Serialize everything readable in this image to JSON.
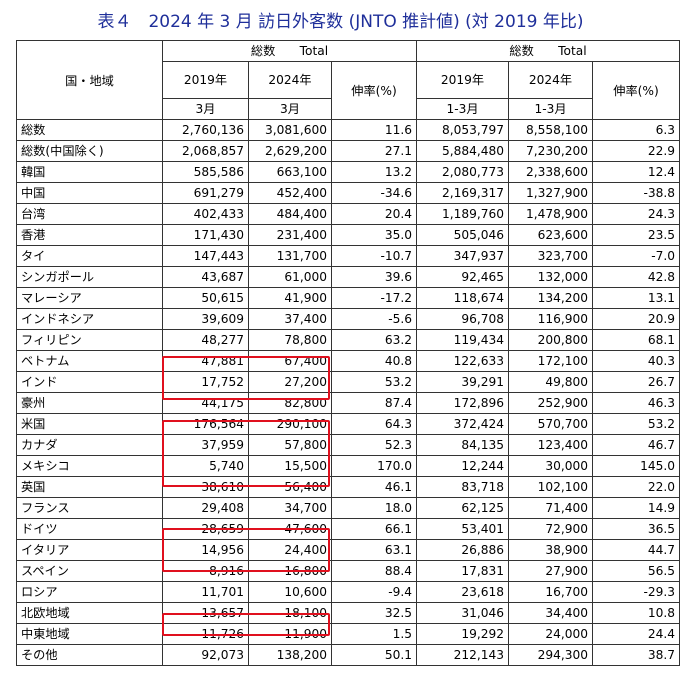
{
  "title": "表４　2024 年 3 月 訪日外客数 (JNTO 推計値) (対 2019 年比)",
  "header": {
    "region_label": "国・地域",
    "group1": "総数　　Total",
    "group2": "総数　　Total",
    "y2019": "2019年",
    "y2024": "2024年",
    "growth": "伸率(%)",
    "month_mar": "3月",
    "month_jan_mar": "1-3月"
  },
  "rows": [
    {
      "name": "総数",
      "m2019": "2,760,136",
      "m2024": "3,081,600",
      "mrate": "11.6",
      "q2019": "8,053,797",
      "q2024": "8,558,100",
      "qrate": "6.3"
    },
    {
      "name": "総数(中国除く)",
      "m2019": "2,068,857",
      "m2024": "2,629,200",
      "mrate": "27.1",
      "q2019": "5,884,480",
      "q2024": "7,230,200",
      "qrate": "22.9"
    },
    {
      "name": "韓国",
      "m2019": "585,586",
      "m2024": "663,100",
      "mrate": "13.2",
      "q2019": "2,080,773",
      "q2024": "2,338,600",
      "qrate": "12.4"
    },
    {
      "name": "中国",
      "m2019": "691,279",
      "m2024": "452,400",
      "mrate": "-34.6",
      "q2019": "2,169,317",
      "q2024": "1,327,900",
      "qrate": "-38.8"
    },
    {
      "name": "台湾",
      "m2019": "402,433",
      "m2024": "484,400",
      "mrate": "20.4",
      "q2019": "1,189,760",
      "q2024": "1,478,900",
      "qrate": "24.3"
    },
    {
      "name": "香港",
      "m2019": "171,430",
      "m2024": "231,400",
      "mrate": "35.0",
      "q2019": "505,046",
      "q2024": "623,600",
      "qrate": "23.5"
    },
    {
      "name": "タイ",
      "m2019": "147,443",
      "m2024": "131,700",
      "mrate": "-10.7",
      "q2019": "347,937",
      "q2024": "323,700",
      "qrate": "-7.0"
    },
    {
      "name": "シンガポール",
      "m2019": "43,687",
      "m2024": "61,000",
      "mrate": "39.6",
      "q2019": "92,465",
      "q2024": "132,000",
      "qrate": "42.8"
    },
    {
      "name": "マレーシア",
      "m2019": "50,615",
      "m2024": "41,900",
      "mrate": "-17.2",
      "q2019": "118,674",
      "q2024": "134,200",
      "qrate": "13.1"
    },
    {
      "name": "インドネシア",
      "m2019": "39,609",
      "m2024": "37,400",
      "mrate": "-5.6",
      "q2019": "96,708",
      "q2024": "116,900",
      "qrate": "20.9"
    },
    {
      "name": "フィリピン",
      "m2019": "48,277",
      "m2024": "78,800",
      "mrate": "63.2",
      "q2019": "119,434",
      "q2024": "200,800",
      "qrate": "68.1"
    },
    {
      "name": "ベトナム",
      "m2019": "47,881",
      "m2024": "67,400",
      "mrate": "40.8",
      "q2019": "122,633",
      "q2024": "172,100",
      "qrate": "40.3"
    },
    {
      "name": "インド",
      "m2019": "17,752",
      "m2024": "27,200",
      "mrate": "53.2",
      "q2019": "39,291",
      "q2024": "49,800",
      "qrate": "26.7"
    },
    {
      "name": "豪州",
      "m2019": "44,175",
      "m2024": "82,800",
      "mrate": "87.4",
      "q2019": "172,896",
      "q2024": "252,900",
      "qrate": "46.3"
    },
    {
      "name": "米国",
      "m2019": "176,564",
      "m2024": "290,100",
      "mrate": "64.3",
      "q2019": "372,424",
      "q2024": "570,700",
      "qrate": "53.2"
    },
    {
      "name": "カナダ",
      "m2019": "37,959",
      "m2024": "57,800",
      "mrate": "52.3",
      "q2019": "84,135",
      "q2024": "123,400",
      "qrate": "46.7"
    },
    {
      "name": "メキシコ",
      "m2019": "5,740",
      "m2024": "15,500",
      "mrate": "170.0",
      "q2019": "12,244",
      "q2024": "30,000",
      "qrate": "145.0"
    },
    {
      "name": "英国",
      "m2019": "38,610",
      "m2024": "56,400",
      "mrate": "46.1",
      "q2019": "83,718",
      "q2024": "102,100",
      "qrate": "22.0"
    },
    {
      "name": "フランス",
      "m2019": "29,408",
      "m2024": "34,700",
      "mrate": "18.0",
      "q2019": "62,125",
      "q2024": "71,400",
      "qrate": "14.9"
    },
    {
      "name": "ドイツ",
      "m2019": "28,659",
      "m2024": "47,600",
      "mrate": "66.1",
      "q2019": "53,401",
      "q2024": "72,900",
      "qrate": "36.5"
    },
    {
      "name": "イタリア",
      "m2019": "14,956",
      "m2024": "24,400",
      "mrate": "63.1",
      "q2019": "26,886",
      "q2024": "38,900",
      "qrate": "44.7"
    },
    {
      "name": "スペイン",
      "m2019": "8,916",
      "m2024": "16,800",
      "mrate": "88.4",
      "q2019": "17,831",
      "q2024": "27,900",
      "qrate": "56.5"
    },
    {
      "name": "ロシア",
      "m2019": "11,701",
      "m2024": "10,600",
      "mrate": "-9.4",
      "q2019": "23,618",
      "q2024": "16,700",
      "qrate": "-29.3"
    },
    {
      "name": "北欧地域",
      "m2019": "13,657",
      "m2024": "18,100",
      "mrate": "32.5",
      "q2019": "31,046",
      "q2024": "34,400",
      "qrate": "10.8"
    },
    {
      "name": "中東地域",
      "m2019": "11,726",
      "m2024": "11,900",
      "mrate": "1.5",
      "q2019": "19,292",
      "q2024": "24,000",
      "qrate": "24.4"
    },
    {
      "name": "その他",
      "m2019": "92,073",
      "m2024": "138,200",
      "mrate": "50.1",
      "q2019": "212,143",
      "q2024": "294,300",
      "qrate": "38.7"
    }
  ],
  "highlight_color": "#e0101e",
  "title_color": "#1f2f9a"
}
